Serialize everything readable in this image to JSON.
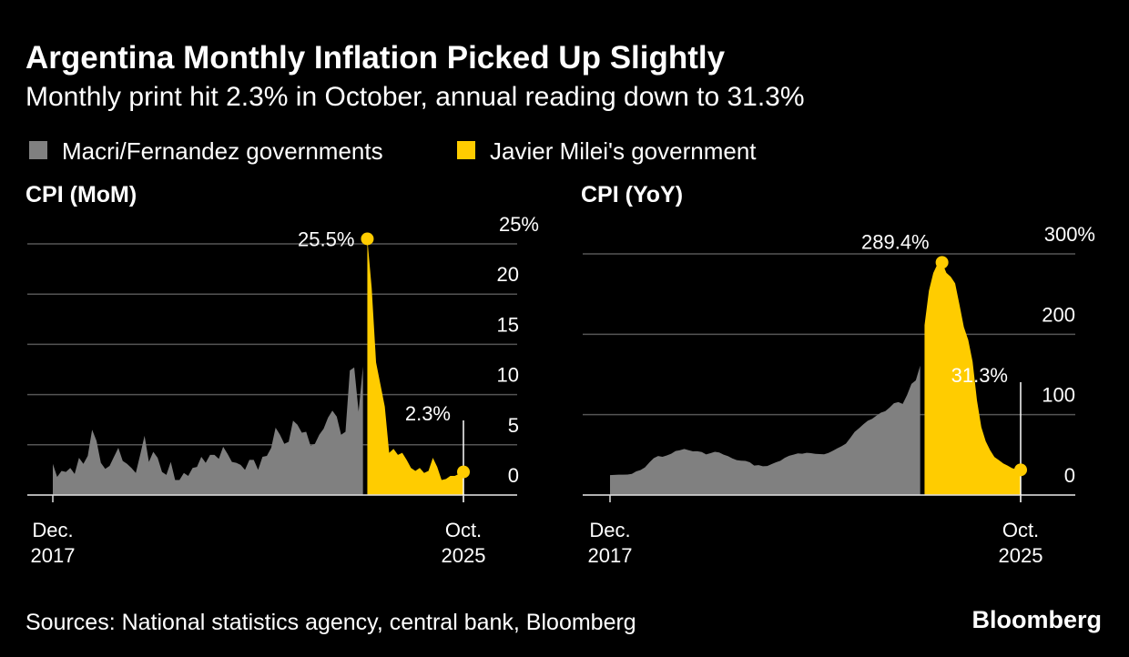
{
  "title": "Argentina Monthly Inflation Picked Up Slightly",
  "subtitle": "Monthly print hit 2.3% in October, annual reading down to 31.3%",
  "source": "Sources: National statistics agency, central bank, Bloomberg",
  "brand": "Bloomberg",
  "chart_data": [
    {
      "type": "area",
      "title": "CPI (MoM)",
      "categories": [
        "Dec. 2017",
        null,
        null,
        null,
        null,
        null,
        null,
        null,
        null,
        null,
        null,
        null,
        null,
        null,
        null,
        null,
        null,
        null,
        null,
        null,
        null,
        null,
        null,
        null,
        null,
        null,
        null,
        null,
        null,
        null,
        null,
        null,
        null,
        null,
        null,
        null,
        null,
        null,
        null,
        null,
        null,
        null,
        null,
        null,
        null,
        null,
        null,
        null,
        null,
        null,
        null,
        null,
        null,
        null,
        null,
        null,
        null,
        null,
        null,
        null,
        null,
        null,
        null,
        null,
        null,
        null,
        null,
        null,
        null,
        null,
        null,
        null,
        null,
        null,
        null,
        null,
        null,
        null,
        null,
        null,
        null,
        null,
        null,
        null,
        null,
        null,
        null,
        null,
        null,
        null,
        null,
        null,
        null,
        null,
        "Oct. 2025"
      ],
      "series": [
        {
          "name": "Macri/Fernandez governments",
          "color": "#808080",
          "values": [
            3.1,
            1.8,
            2.4,
            2.3,
            2.7,
            2.1,
            3.7,
            3.1,
            3.9,
            6.5,
            5.4,
            3.2,
            2.6,
            2.9,
            3.8,
            4.7,
            3.4,
            3.1,
            2.7,
            2.2,
            4.0,
            5.9,
            3.3,
            4.3,
            3.7,
            2.3,
            2.0,
            3.3,
            1.5,
            1.5,
            2.2,
            1.9,
            2.7,
            2.8,
            3.8,
            3.2,
            4.0,
            4.0,
            3.6,
            4.8,
            4.1,
            3.3,
            3.2,
            3.0,
            2.5,
            3.5,
            3.5,
            2.5,
            3.8,
            3.9,
            4.7,
            6.7,
            6.0,
            5.1,
            5.3,
            7.4,
            7.0,
            6.2,
            6.3,
            4.9,
            5.1,
            6.0,
            6.6,
            7.7,
            8.4,
            7.8,
            6.0,
            6.3,
            12.4,
            12.7,
            8.3,
            12.8,
            null,
            null,
            null,
            null,
            null,
            null,
            null,
            null,
            null,
            null,
            null,
            null,
            null,
            null,
            null,
            null,
            null,
            null,
            null,
            null,
            null,
            null,
            null
          ]
        },
        {
          "name": "Javier Milei's government",
          "color": "#ffcc00",
          "values": [
            null,
            null,
            null,
            null,
            null,
            null,
            null,
            null,
            null,
            null,
            null,
            null,
            null,
            null,
            null,
            null,
            null,
            null,
            null,
            null,
            null,
            null,
            null,
            null,
            null,
            null,
            null,
            null,
            null,
            null,
            null,
            null,
            null,
            null,
            null,
            null,
            null,
            null,
            null,
            null,
            null,
            null,
            null,
            null,
            null,
            null,
            null,
            null,
            null,
            null,
            null,
            null,
            null,
            null,
            null,
            null,
            null,
            null,
            null,
            null,
            null,
            null,
            null,
            null,
            null,
            null,
            null,
            null,
            null,
            null,
            null,
            null,
            25.5,
            20.6,
            13.2,
            11.0,
            8.8,
            4.2,
            4.6,
            4.0,
            4.2,
            3.5,
            2.7,
            2.4,
            2.7,
            2.2,
            2.4,
            3.7,
            2.8,
            1.5,
            1.6,
            1.9,
            1.9,
            2.1,
            2.3
          ],
          "value_labels": [
            null,
            null,
            null,
            null,
            null,
            null,
            null,
            null,
            null,
            null,
            null,
            null,
            null,
            null,
            null,
            null,
            null,
            null,
            null,
            null,
            null,
            null,
            null,
            null,
            null,
            null,
            null,
            null,
            null,
            null,
            null,
            null,
            null,
            null,
            null,
            null,
            null,
            null,
            null,
            null,
            null,
            null,
            null,
            null,
            null,
            null,
            null,
            null,
            null,
            null,
            null,
            null,
            null,
            null,
            null,
            null,
            null,
            null,
            null,
            null,
            null,
            null,
            null,
            null,
            null,
            null,
            null,
            null,
            null,
            null,
            null,
            null,
            "25.5%",
            null,
            null,
            null,
            null,
            null,
            null,
            null,
            null,
            null,
            null,
            null,
            null,
            null,
            null,
            null,
            null,
            null,
            null,
            null,
            null,
            null,
            "2.3%"
          ]
        }
      ],
      "ylim": [
        0,
        25
      ],
      "yticks": [
        0,
        5,
        10,
        15,
        20,
        {
          "value": 25,
          "label": "25%"
        }
      ],
      "grid": true
    },
    {
      "type": "area",
      "title": "CPI (YoY)",
      "categories": [
        "Dec. 2017",
        null,
        null,
        null,
        null,
        null,
        null,
        null,
        null,
        null,
        null,
        null,
        null,
        null,
        null,
        null,
        null,
        null,
        null,
        null,
        null,
        null,
        null,
        null,
        null,
        null,
        null,
        null,
        null,
        null,
        null,
        null,
        null,
        null,
        null,
        null,
        null,
        null,
        null,
        null,
        null,
        null,
        null,
        null,
        null,
        null,
        null,
        null,
        null,
        null,
        null,
        null,
        null,
        null,
        null,
        null,
        null,
        null,
        null,
        null,
        null,
        null,
        null,
        null,
        null,
        null,
        null,
        null,
        null,
        null,
        null,
        null,
        null,
        null,
        null,
        null,
        null,
        null,
        null,
        null,
        null,
        null,
        null,
        null,
        null,
        null,
        null,
        null,
        null,
        null,
        null,
        null,
        null,
        null,
        "Oct. 2025"
      ],
      "series": [
        {
          "name": "Macri/Fernandez governments",
          "color": "#808080",
          "values": [
            24.8,
            25.0,
            25.4,
            25.4,
            25.5,
            26.3,
            29.5,
            31.2,
            34.4,
            40.5,
            45.9,
            48.5,
            47.6,
            49.3,
            51.3,
            54.7,
            55.8,
            57.3,
            55.8,
            54.4,
            54.5,
            53.5,
            50.5,
            52.1,
            53.8,
            52.9,
            50.3,
            48.4,
            45.6,
            43.4,
            42.8,
            42.4,
            40.7,
            36.6,
            37.2,
            35.8,
            36.1,
            38.5,
            40.7,
            42.6,
            46.3,
            48.8,
            50.2,
            51.8,
            51.4,
            52.5,
            52.1,
            51.2,
            50.9,
            50.7,
            52.3,
            55.1,
            58.0,
            60.7,
            64.0,
            71.0,
            78.5,
            83.0,
            88.0,
            92.4,
            94.8,
            98.8,
            102.5,
            104.3,
            108.8,
            114.2,
            115.6,
            113.4,
            124.4,
            138.3,
            142.7,
            160.9,
            null,
            null,
            null,
            null,
            null,
            null,
            null,
            null,
            null,
            null,
            null,
            null,
            null,
            null,
            null,
            null,
            null,
            null,
            null,
            null,
            null,
            null,
            null
          ]
        },
        {
          "name": "Javier Milei's government",
          "color": "#ffcc00",
          "values": [
            null,
            null,
            null,
            null,
            null,
            null,
            null,
            null,
            null,
            null,
            null,
            null,
            null,
            null,
            null,
            null,
            null,
            null,
            null,
            null,
            null,
            null,
            null,
            null,
            null,
            null,
            null,
            null,
            null,
            null,
            null,
            null,
            null,
            null,
            null,
            null,
            null,
            null,
            null,
            null,
            null,
            null,
            null,
            null,
            null,
            null,
            null,
            null,
            null,
            null,
            null,
            null,
            null,
            null,
            null,
            null,
            null,
            null,
            null,
            null,
            null,
            null,
            null,
            null,
            null,
            null,
            null,
            null,
            null,
            null,
            null,
            null,
            211.4,
            254.2,
            276.2,
            287.9,
            289.4,
            276.4,
            271.5,
            263.4,
            236.7,
            209.0,
            193.0,
            166.0,
            117.8,
            84.5,
            66.9,
            55.9,
            47.3,
            43.5,
            39.4,
            36.6,
            33.6,
            31.8,
            31.3
          ],
          "value_labels": [
            null,
            null,
            null,
            null,
            null,
            null,
            null,
            null,
            null,
            null,
            null,
            null,
            null,
            null,
            null,
            null,
            null,
            null,
            null,
            null,
            null,
            null,
            null,
            null,
            null,
            null,
            null,
            null,
            null,
            null,
            null,
            null,
            null,
            null,
            null,
            null,
            null,
            null,
            null,
            null,
            null,
            null,
            null,
            null,
            null,
            null,
            null,
            null,
            null,
            null,
            null,
            null,
            null,
            null,
            null,
            null,
            null,
            null,
            null,
            null,
            null,
            null,
            null,
            null,
            null,
            null,
            null,
            null,
            null,
            null,
            null,
            null,
            null,
            null,
            null,
            null,
            "289.4%",
            null,
            null,
            null,
            null,
            null,
            null,
            null,
            null,
            null,
            null,
            null,
            null,
            null,
            null,
            null,
            null,
            null,
            "31.3%"
          ]
        }
      ],
      "ylim": [
        0,
        300
      ],
      "yticks": [
        0,
        100,
        200,
        {
          "value": 300,
          "label": "300%"
        }
      ],
      "grid": true
    }
  ]
}
